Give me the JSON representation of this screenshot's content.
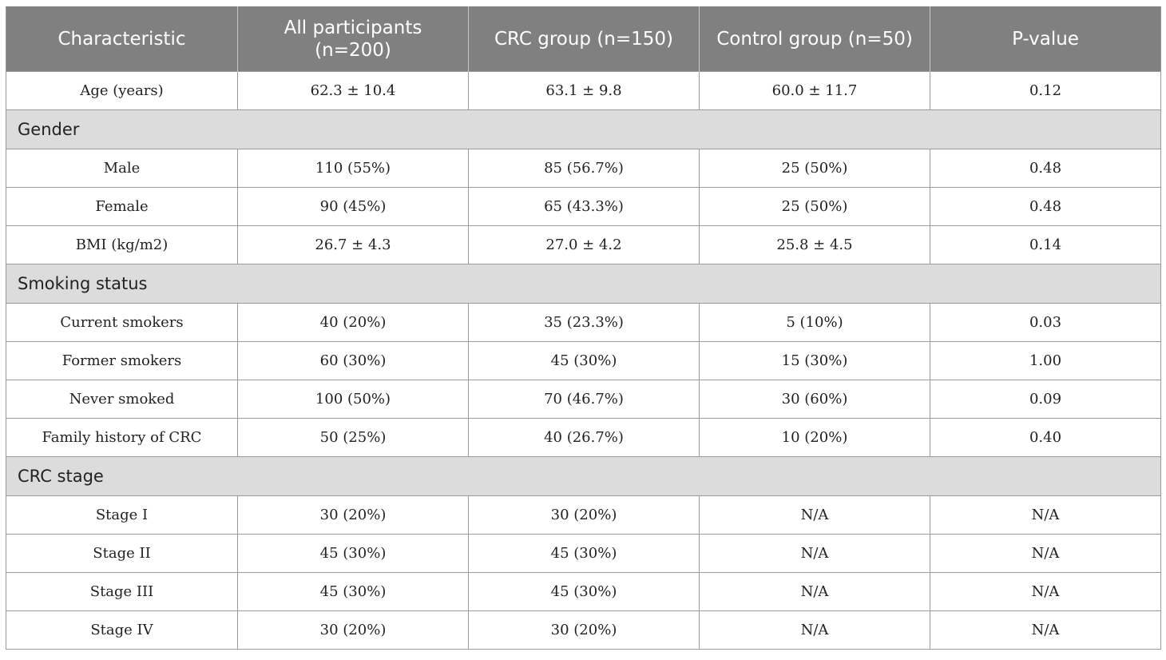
{
  "table": {
    "columns": [
      {
        "lines": [
          "Characteristic"
        ]
      },
      {
        "lines": [
          "All participants",
          "(n=200)"
        ]
      },
      {
        "lines": [
          "CRC group (n=150)"
        ]
      },
      {
        "lines": [
          "Control group (n=50)"
        ]
      },
      {
        "lines": [
          "P-value"
        ]
      }
    ],
    "rows": [
      {
        "type": "data",
        "cells": [
          "Age (years)",
          "62.3 ± 10.4",
          "63.1 ± 9.8",
          "60.0 ± 11.7",
          "0.12"
        ]
      },
      {
        "type": "section",
        "label": "Gender"
      },
      {
        "type": "data",
        "cells": [
          "Male",
          "110 (55%)",
          "85 (56.7%)",
          "25 (50%)",
          "0.48"
        ]
      },
      {
        "type": "data",
        "cells": [
          "Female",
          "90 (45%)",
          "65 (43.3%)",
          "25 (50%)",
          "0.48"
        ]
      },
      {
        "type": "data",
        "cells": [
          "BMI (kg/m2)",
          "26.7 ± 4.3",
          "27.0 ± 4.2",
          "25.8 ± 4.5",
          "0.14"
        ]
      },
      {
        "type": "section",
        "label": "Smoking status"
      },
      {
        "type": "data",
        "cells": [
          "Current smokers",
          "40 (20%)",
          "35 (23.3%)",
          "5 (10%)",
          "0.03"
        ]
      },
      {
        "type": "data",
        "cells": [
          "Former smokers",
          "60 (30%)",
          "45 (30%)",
          "15 (30%)",
          "1.00"
        ]
      },
      {
        "type": "data",
        "cells": [
          "Never smoked",
          "100 (50%)",
          "70 (46.7%)",
          "30 (60%)",
          "0.09"
        ]
      },
      {
        "type": "data",
        "cells": [
          "Family history of CRC",
          "50 (25%)",
          "40 (26.7%)",
          "10 (20%)",
          "0.40"
        ]
      },
      {
        "type": "section",
        "label": "CRC stage"
      },
      {
        "type": "data",
        "cells": [
          "Stage I",
          "30 (20%)",
          "30 (20%)",
          "N/A",
          "N/A"
        ]
      },
      {
        "type": "data",
        "cells": [
          "Stage II",
          "45 (30%)",
          "45 (30%)",
          "N/A",
          "N/A"
        ]
      },
      {
        "type": "data",
        "cells": [
          "Stage III",
          "45 (30%)",
          "45 (30%)",
          "N/A",
          "N/A"
        ]
      },
      {
        "type": "data",
        "cells": [
          "Stage IV",
          "30 (20%)",
          "30 (20%)",
          "N/A",
          "N/A"
        ]
      }
    ]
  }
}
